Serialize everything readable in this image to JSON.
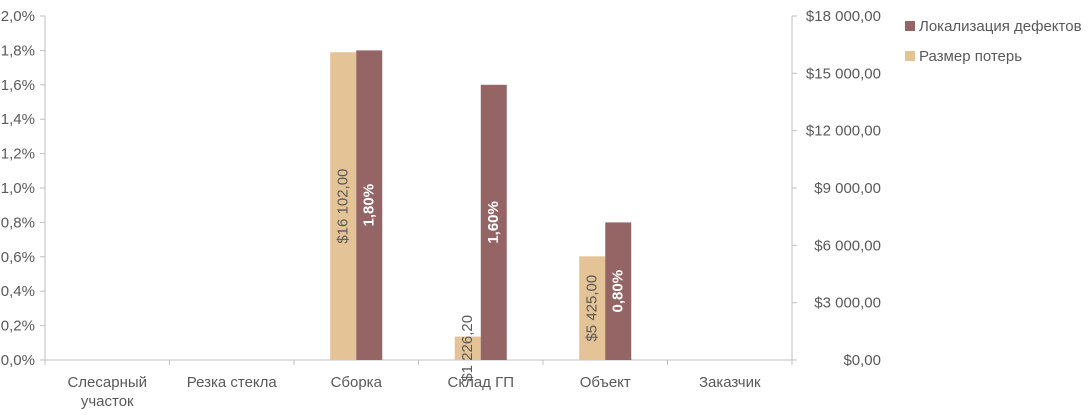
{
  "chart_data": {
    "type": "bar",
    "categories": [
      "Слесарный участок",
      "Резка стекла",
      "Сборка",
      "Склад ГП",
      "Объект",
      "Заказчик"
    ],
    "category_lines": [
      [
        "Слесарный",
        "участок"
      ],
      [
        "Резка стекла"
      ],
      [
        "Сборка"
      ],
      [
        "Склад ГП"
      ],
      [
        "Объект"
      ],
      [
        "Заказчик"
      ]
    ],
    "series": [
      {
        "name": "Размер потерь",
        "axis": "right",
        "color": "#E4C396",
        "values": [
          0,
          0,
          16102.0,
          1226.2,
          5425.0,
          0
        ],
        "labels": [
          "",
          "",
          "$16 102,00",
          "$1 226,20",
          "$5 425,00",
          ""
        ],
        "label_color": "#595959"
      },
      {
        "name": "Локализация дефектов",
        "axis": "left",
        "color": "#956565",
        "values": [
          0,
          0,
          1.8,
          1.6,
          0.8,
          0
        ],
        "labels": [
          "",
          "",
          "1,80%",
          "1,60%",
          "0,80%",
          ""
        ],
        "label_color": "#ffffff"
      }
    ],
    "left_axis": {
      "min": 0,
      "max": 2.0,
      "ticks": [
        0,
        0.2,
        0.4,
        0.6,
        0.8,
        1.0,
        1.2,
        1.4,
        1.6,
        1.8,
        2.0
      ],
      "tick_labels": [
        "0,0%",
        "0,2%",
        "0,4%",
        "0,6%",
        "0,8%",
        "1,0%",
        "1,2%",
        "1,4%",
        "1,6%",
        "1,8%",
        "2,0%"
      ]
    },
    "right_axis": {
      "min": 0,
      "max": 18000,
      "ticks": [
        0,
        3000,
        6000,
        9000,
        12000,
        15000,
        18000
      ],
      "tick_labels": [
        "$0,00",
        "$3 000,00",
        "$6 000,00",
        "$9 000,00",
        "$12 000,00",
        "$15 000,00",
        "$18 000,00"
      ]
    },
    "legend": {
      "position": "top-right",
      "items": [
        {
          "name": "Локализация дефектов",
          "color": "#956565"
        },
        {
          "name": "Размер потерь",
          "color": "#E4C396"
        }
      ]
    },
    "grid": false,
    "title": "",
    "xlabel": "",
    "ylabel": ""
  }
}
